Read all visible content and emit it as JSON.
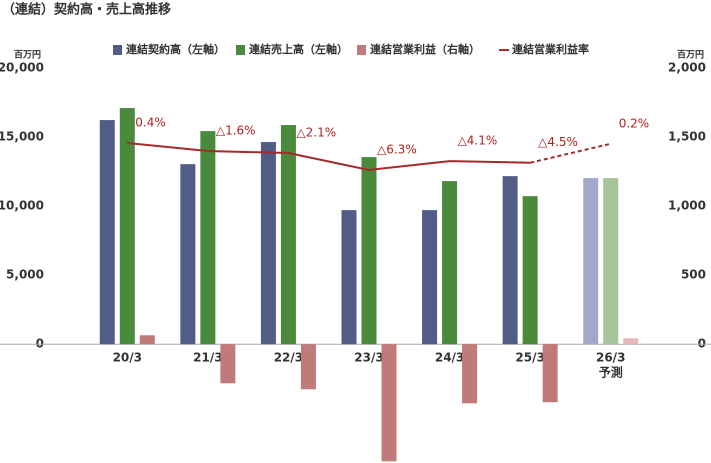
{
  "chart_data": {
    "type": "bar_line",
    "title": "（連結）契約高・売上高推移",
    "y_unit": "百万円",
    "y2_unit": "百万円",
    "categories": [
      "20/3",
      "21/3",
      "22/3",
      "23/3",
      "24/3",
      "25/3",
      "26/3"
    ],
    "forecast_label": "予測",
    "forecast_from": 6,
    "series": [
      {
        "name": "連結契約高（左軸）",
        "color": "#525d87",
        "forecast_color": "#a3a8c8",
        "axis": "y",
        "values": [
          16230,
          13040,
          14640,
          9710,
          9710,
          12170,
          12030
        ]
      },
      {
        "name": "連結売上高（左軸）",
        "color": "#4a8a3c",
        "forecast_color": "#a6c49a",
        "axis": "y",
        "values": [
          17100,
          15430,
          15870,
          13550,
          11810,
          10720,
          12030
        ]
      },
      {
        "name": "連結営業利益（右軸）",
        "color": "#c07a7a",
        "forecast_color": "#e8b8b8",
        "axis": "y2",
        "values": [
          65,
          -283,
          -326,
          -848,
          -428,
          -420,
          43
        ]
      },
      {
        "name": "連結営業利益率",
        "color": "#a52a2a",
        "type": "line",
        "axis": "y3",
        "values": [
          0.4,
          -1.6,
          -2.1,
          -6.3,
          -4.1,
          -4.5,
          0.2
        ],
        "value_labels": [
          "0.4%",
          "△1.6%",
          "△2.1%",
          "△6.3%",
          "△4.1%",
          "△4.5%",
          "0.2%"
        ]
      }
    ],
    "ylim": [
      -8600,
      20000
    ],
    "yticks": [
      0,
      {
        "value": 5000,
        "label": "5,000"
      },
      {
        "value": 10000,
        "label": "10,000"
      },
      {
        "value": 15000,
        "label": "15,000"
      },
      {
        "value": 20000,
        "label": "20,000"
      }
    ],
    "y2lim": [
      -860,
      2000
    ],
    "y2ticks": [
      0,
      500,
      {
        "value": 1000,
        "label": "1,000"
      },
      {
        "value": 1500,
        "label": "1,500"
      },
      {
        "value": 2000,
        "label": "2,000"
      }
    ],
    "y3lim": [
      -79,
      19
    ]
  }
}
